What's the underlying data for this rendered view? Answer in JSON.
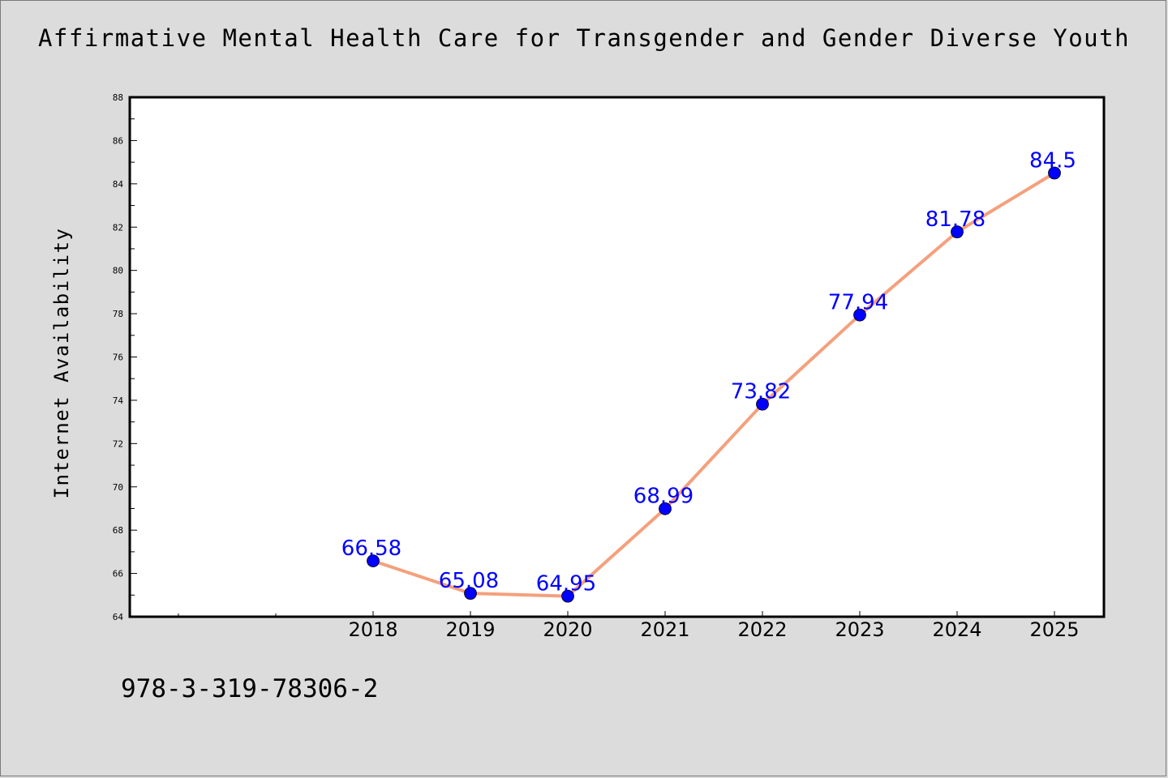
{
  "page": {
    "title": "Affirmative Mental Health Care for Transgender and Gender Diverse Youth",
    "footer_code": "978-3-319-78306-2"
  },
  "colors": {
    "background": "#dcdcdc",
    "plot_background": "#ffffff",
    "line": "#f4a07d",
    "marker": "#0000ff",
    "label": "#0000ff"
  },
  "chart_data": {
    "type": "line",
    "title": "Affirmative Mental Health Care for Transgender and Gender Diverse Youth",
    "xlabel": "",
    "ylabel": "Internet Availability",
    "categories": [
      "2018",
      "2019",
      "2020",
      "2021",
      "2022",
      "2023",
      "2024",
      "2025"
    ],
    "series": [
      {
        "values": [
          66.58,
          65.08,
          64.95,
          68.99,
          73.82,
          77.94,
          81.78,
          84.5
        ],
        "data_labels": [
          "66.58",
          "65.08",
          "64.95",
          "68.99",
          "73.82",
          "77.94",
          "81.78",
          "84.5"
        ]
      }
    ],
    "ylim": [
      64,
      88
    ],
    "yticks": [
      "64",
      "66",
      "68",
      "70",
      "72",
      "74",
      "76",
      "78",
      "80",
      "82",
      "84",
      "86",
      "88"
    ],
    "grid": false,
    "legend": "none"
  }
}
